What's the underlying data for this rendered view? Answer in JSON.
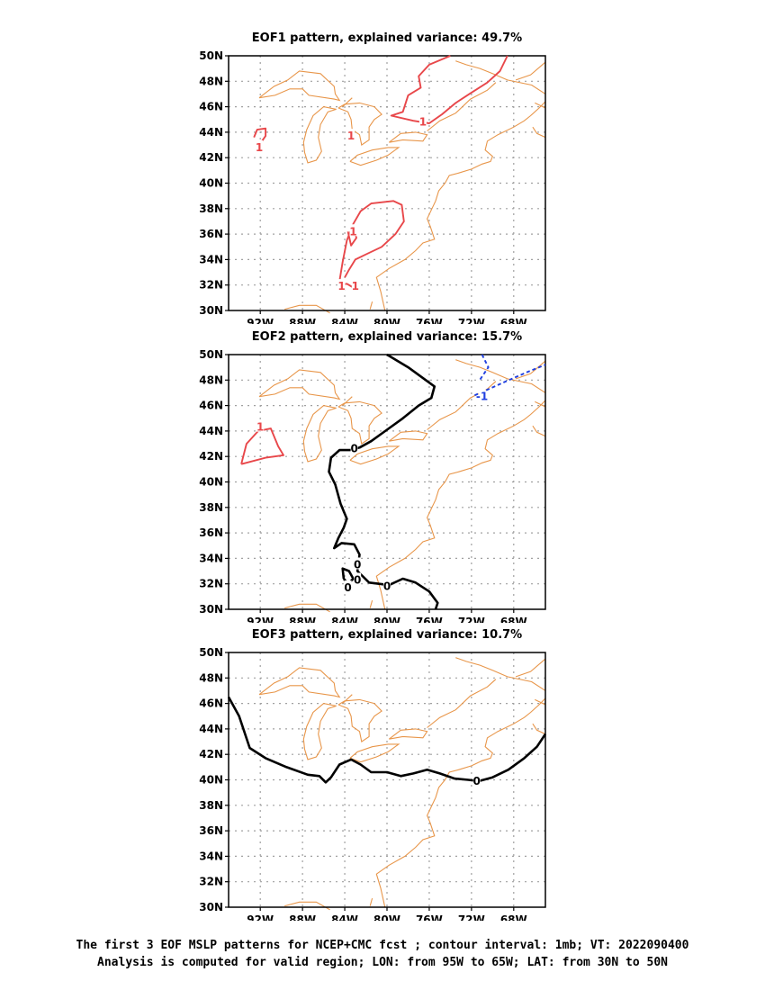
{
  "colors": {
    "coastline": "#e8964a",
    "grid": "#a0a0a0",
    "positive_contour": "#e8474a",
    "negative_contour": "#1f3fe0",
    "zero_contour": "#000000"
  },
  "region": {
    "lon_range": [
      -95,
      -65
    ],
    "lat_range": [
      30,
      50
    ]
  },
  "axes": {
    "x_ticks": [
      "92W",
      "88W",
      "84W",
      "80W",
      "76W",
      "72W",
      "68W"
    ],
    "y_ticks": [
      "50N",
      "48N",
      "46N",
      "44N",
      "42N",
      "40N",
      "38N",
      "36N",
      "34N",
      "32N",
      "30N"
    ]
  },
  "panels": [
    {
      "title": "EOF1 pattern, explained variance: 49.7%"
    },
    {
      "title": "EOF2 pattern, explained variance: 15.7%"
    },
    {
      "title": "EOF3 pattern, explained variance: 10.7%"
    }
  ],
  "caption": {
    "line1": "The first 3 EOF MSLP patterns for NCEP+CMC fcst ; contour interval: 1mb; VT: 2022090400",
    "line2": "Analysis is computed for valid region; LON: from 95W to 65W; LAT: from 30N to 50N"
  },
  "contour_labels": {
    "eof1": [
      "1",
      "1",
      "1",
      "1",
      "1",
      "1"
    ],
    "eof2": [
      "1",
      "-1",
      "0",
      "0",
      "0",
      "0",
      "0"
    ],
    "eof3": [
      "0"
    ]
  }
}
